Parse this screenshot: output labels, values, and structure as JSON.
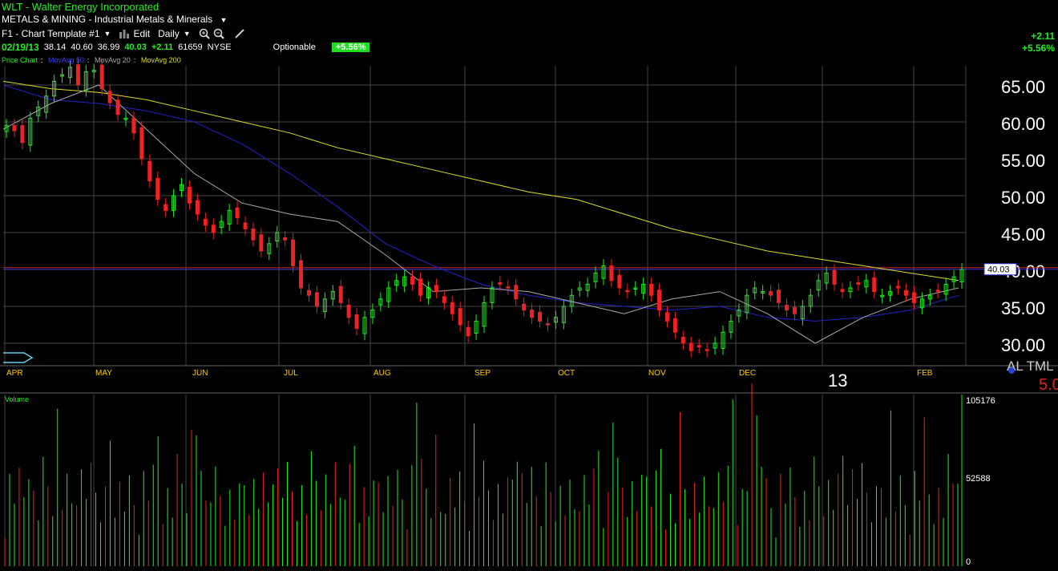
{
  "header": {
    "title": "WLT - Walter Energy Incorporated",
    "sector": "METALS & MINING - Industrial Metals & Minerals",
    "template": "F1 - Chart Template #1",
    "edit_label": "Edit",
    "period": "Daily"
  },
  "quote": {
    "date": "02/19/13",
    "open": "38.14",
    "high": "40.60",
    "low": "36.99",
    "last": "40.03",
    "change": "+2.11",
    "volume": "61659",
    "exchange": "NYSE",
    "optionable": "Optionable",
    "pct": "+5.56%"
  },
  "right_change": {
    "change": "+2.11",
    "pct": "+5.56%"
  },
  "legend": {
    "price": "Price Chart",
    "ma50": "MovAvg 50",
    "ma20": "MovAvg 20",
    "ma200": "MovAvg 200"
  },
  "price_labels": [
    "65.00",
    "60.00",
    "55.00",
    "50.00",
    "45.00",
    "40.00",
    "35.00",
    "30.00"
  ],
  "current_price_tag": "40.03",
  "volume_labels": {
    "top": "105176",
    "mid": "52588",
    "zero": "0"
  },
  "volume_title": "Volume",
  "year_label": "13",
  "corner_text": "AL TML",
  "corner_red": "5.0",
  "colors": {
    "up": "#22ee22",
    "down": "#ee2222",
    "ma50": "#2222cc",
    "ma20": "#aaaaaa",
    "ma200": "#dddd22",
    "grid": "#444444",
    "hline_red": "#cc2222",
    "hline_blue": "#3333dd"
  },
  "chart_data": {
    "type": "candlestick",
    "months": [
      "APR",
      "MAY",
      "JUN",
      "JUL",
      "AUG",
      "SEP",
      "OCT",
      "NOV",
      "DEC",
      "FEB"
    ],
    "price_axis": {
      "min": 28,
      "max": 70,
      "ticks": [
        65,
        60,
        55,
        50,
        45,
        40,
        35,
        30
      ]
    },
    "candles_close": [
      59.5,
      58.8,
      57.2,
      60.5,
      62.0,
      63.5,
      65.5,
      66.4,
      67.4,
      65.0,
      66.8,
      67.0,
      64.5,
      62.6,
      61.0,
      60.5,
      58.5,
      55.0,
      52.0,
      49.5,
      48.0,
      50.0,
      51.5,
      49.0,
      47.5,
      46.0,
      45.0,
      46.5,
      48.0,
      47.0,
      45.5,
      44.0,
      42.5,
      43.5,
      45.0,
      44.0,
      40.5,
      37.5,
      36.5,
      35.0,
      36.0,
      37.0,
      35.5,
      33.5,
      32.0,
      33.5,
      34.5,
      36.0,
      37.5,
      38.5,
      39.0,
      38.0,
      36.5,
      37.5,
      37.0,
      35.5,
      34.0,
      32.5,
      31.0,
      33.0,
      35.5,
      37.5,
      38.0,
      37.5,
      36.0,
      34.5,
      33.5,
      33.0,
      32.5,
      33.5,
      35.0,
      36.5,
      37.5,
      38.0,
      39.5,
      40.5,
      38.5,
      37.5,
      37.0,
      37.5,
      38.0,
      36.5,
      34.5,
      33.0,
      31.5,
      30.0,
      29.0,
      29.5,
      29.0,
      30.0,
      31.5,
      33.0,
      34.5,
      36.5,
      37.5,
      37.0,
      36.5,
      35.5,
      34.5,
      34.0,
      35.0,
      36.5,
      38.5,
      39.5,
      38.0,
      37.0,
      37.5,
      38.0,
      38.5,
      37.0,
      36.5,
      37.0,
      37.5,
      36.5,
      35.5,
      36.0,
      36.5,
      37.0,
      38.0,
      39.0,
      40.0
    ],
    "ma200": [
      65.5,
      64.5,
      64.0,
      63.0,
      61.5,
      60.0,
      58.5,
      56.5,
      55.0,
      53.5,
      52.0,
      50.5,
      49.5,
      47.5,
      45.5,
      44.0,
      42.5,
      41.5,
      40.5,
      39.5,
      38.5
    ],
    "ma50": [
      65.0,
      63.0,
      62.5,
      61.5,
      60.0,
      57.0,
      53.0,
      48.5,
      43.5,
      40.5,
      38.0,
      36.5,
      35.5,
      35.0,
      34.5,
      35.0,
      33.5,
      33.0,
      33.5,
      34.5,
      36.5
    ],
    "ma20": [
      59.0,
      62.5,
      65.0,
      59.0,
      53.0,
      49.0,
      47.5,
      46.5,
      42.0,
      37.0,
      37.5,
      37.0,
      35.5,
      34.0,
      36.0,
      37.0,
      34.0,
      30.0,
      33.5,
      36.0,
      37.5
    ],
    "volume_axis": {
      "max": 105176,
      "mid": 52588,
      "min": 0
    }
  }
}
